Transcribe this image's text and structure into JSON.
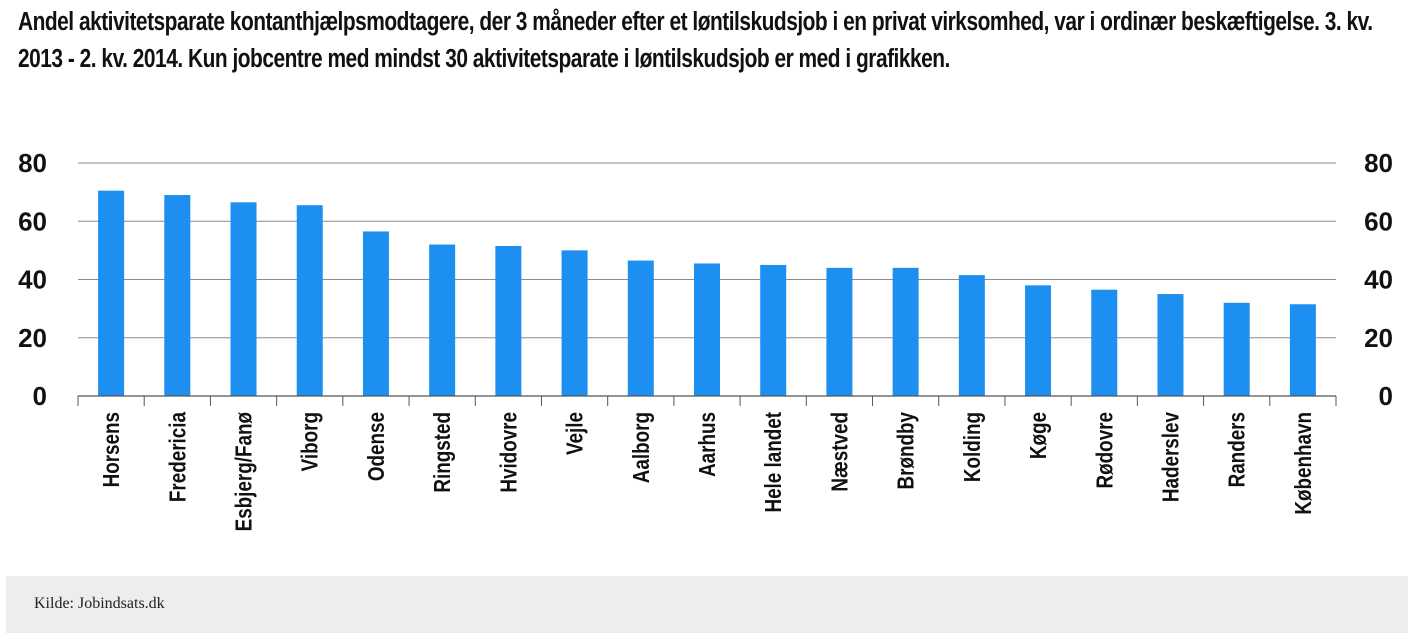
{
  "title": "Andel aktivitetsparate kontanthjælpsmodtagere, der 3 måneder efter et løntilskudsjob i en privat virksomhed, var i ordinær beskæftigelse. 3. kv. 2013 - 2. kv. 2014. Kun jobcentre med mindst 30 aktivitetsparate i løntilskudsjob er med i grafikken.",
  "source": "Kilde: Jobindsats.dk",
  "colors": {
    "bar": "#1c8ff0",
    "gridline": "#8c8c8c",
    "axis": "#555555",
    "text": "#111111",
    "footer_bg": "#ededed"
  },
  "chart_data": {
    "type": "bar",
    "title": "Andel aktivitetsparate kontanthjælpsmodtagere, der 3 måneder efter et løntilskudsjob i en privat virksomhed, var i ordinær beskæftigelse. 3. kv. 2013 - 2. kv. 2014. Kun jobcentre med mindst 30 aktivitetsparate i løntilskudsjob er med i grafikken.",
    "xlabel": "",
    "ylabel": "",
    "categories": [
      "Horsens",
      "Fredericia",
      "Esbjerg/Fanø",
      "Viborg",
      "Odense",
      "Ringsted",
      "Hvidovre",
      "Vejle",
      "Aalborg",
      "Aarhus",
      "Hele landet",
      "Næstved",
      "Brøndby",
      "Kolding",
      "Køge",
      "Rødovre",
      "Haderslev",
      "Randers",
      "København"
    ],
    "values": [
      70.5,
      69,
      66.5,
      65.5,
      56.5,
      52,
      51.5,
      50,
      46.5,
      45.5,
      45,
      44,
      44,
      41.5,
      38,
      36.5,
      35,
      32,
      31.5
    ],
    "ylim": [
      0,
      80
    ],
    "yticks": [
      0,
      20,
      40,
      60,
      80
    ],
    "grid": true,
    "right_axis": true,
    "legend": "none"
  }
}
